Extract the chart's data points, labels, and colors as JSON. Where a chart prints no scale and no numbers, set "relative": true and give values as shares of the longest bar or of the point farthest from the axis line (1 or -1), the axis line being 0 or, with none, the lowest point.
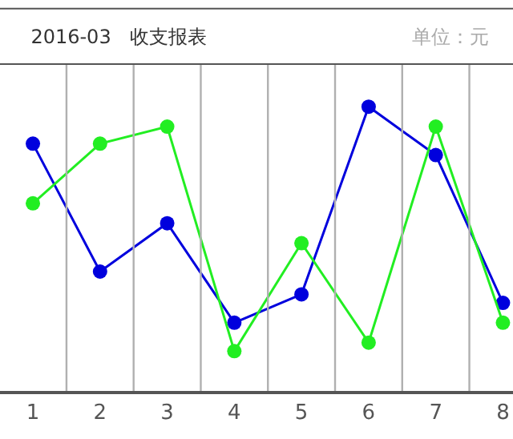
{
  "chart_data": {
    "type": "line",
    "title": "2016-03   收支报表",
    "annotations": [
      "单位：元"
    ],
    "relative": true,
    "categories": [
      "1",
      "2",
      "3",
      "4",
      "5",
      "6",
      "7",
      "8"
    ],
    "series": [
      {
        "color": "#0000dd",
        "values": [
          0.87,
          0.42,
          0.59,
          0.24,
          0.34,
          1,
          0.83,
          0.31
        ]
      },
      {
        "color": "#22ee22",
        "values": [
          0.66,
          0.87,
          0.93,
          0.14,
          0.52,
          0.17,
          0.93,
          0.24
        ]
      }
    ],
    "grid": "x",
    "marker": "circle",
    "line_style": "solid"
  }
}
